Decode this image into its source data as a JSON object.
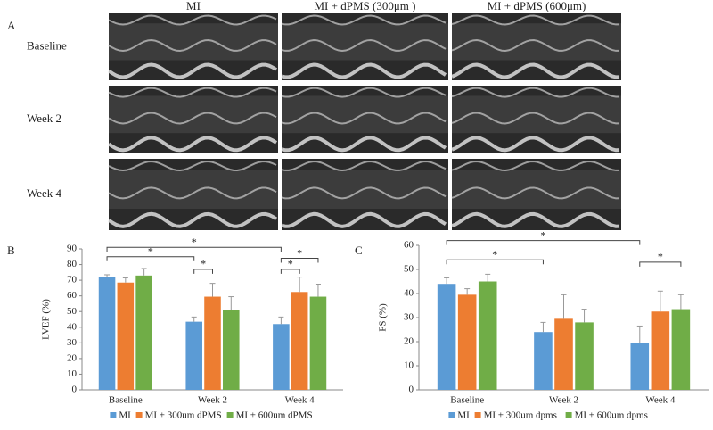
{
  "panel_a": {
    "label": "A",
    "columns": [
      "MI",
      "MI + dPMS (300μm )",
      "MI + dPMS (600μm)"
    ],
    "rows": [
      "Baseline",
      "Week 2",
      "Week 4"
    ]
  },
  "chart_data": [
    {
      "type": "bar",
      "panel": "B",
      "ylabel": "LVEF (%)",
      "categories": [
        "Baseline",
        "Week 2",
        "Week 4"
      ],
      "series": [
        {
          "name": "MI",
          "color": "#5b9bd5",
          "values": [
            72,
            43.5,
            42
          ],
          "errors": [
            1.5,
            3,
            4.5
          ]
        },
        {
          "name": "MI + 300um dPMS",
          "color": "#ed7d31",
          "values": [
            68.5,
            59.5,
            62.5
          ],
          "errors": [
            3,
            8.5,
            9.5
          ]
        },
        {
          "name": "MI + 600um dPMS",
          "color": "#70ad47",
          "values": [
            73,
            51,
            59.5
          ],
          "errors": [
            4.5,
            8.5,
            8
          ]
        }
      ],
      "ylim": [
        0,
        90
      ],
      "yticks": [
        0,
        10,
        20,
        30,
        40,
        50,
        60,
        70,
        80,
        90
      ],
      "annotations": [
        {
          "between": [
            [
              0,
              0
            ],
            [
              2,
              0
            ]
          ],
          "y": 91,
          "label": "*"
        },
        {
          "between": [
            [
              0,
              0
            ],
            [
              1,
              0
            ]
          ],
          "y": 85,
          "label": "*"
        },
        {
          "between": [
            [
              1,
              0
            ],
            [
              1,
              1
            ]
          ],
          "y": 77,
          "label": "*"
        },
        {
          "between": [
            [
              2,
              0
            ],
            [
              2,
              2
            ]
          ],
          "y": 84,
          "label": "*"
        },
        {
          "between": [
            [
              2,
              0
            ],
            [
              2,
              1
            ]
          ],
          "y": 77,
          "label": "*"
        }
      ]
    },
    {
      "type": "bar",
      "panel": "C",
      "ylabel": "FS (%)",
      "categories": [
        "Baseline",
        "Week 2",
        "Week 4"
      ],
      "series": [
        {
          "name": "MI",
          "color": "#5b9bd5",
          "values": [
            44,
            24,
            19.5
          ],
          "errors": [
            2.5,
            4,
            7
          ]
        },
        {
          "name": "MI + 300um dpms",
          "color": "#ed7d31",
          "values": [
            39.5,
            29.5,
            32.5
          ],
          "errors": [
            2.5,
            10,
            8.5
          ]
        },
        {
          "name": "MI + 600um dpms",
          "color": "#70ad47",
          "values": [
            45,
            28,
            33.5
          ],
          "errors": [
            3,
            5.5,
            6
          ]
        }
      ],
      "ylim": [
        0,
        60
      ],
      "yticks": [
        0,
        10,
        20,
        30,
        40,
        50,
        60
      ],
      "annotations": [
        {
          "between": [
            [
              0,
              0
            ],
            [
              2,
              0
            ]
          ],
          "y": 62,
          "label": "*"
        },
        {
          "between": [
            [
              0,
              0
            ],
            [
              1,
              0
            ]
          ],
          "y": 54,
          "label": "*"
        },
        {
          "between": [
            [
              2,
              0
            ],
            [
              2,
              2
            ]
          ],
          "y": 53,
          "label": "*"
        }
      ]
    }
  ]
}
